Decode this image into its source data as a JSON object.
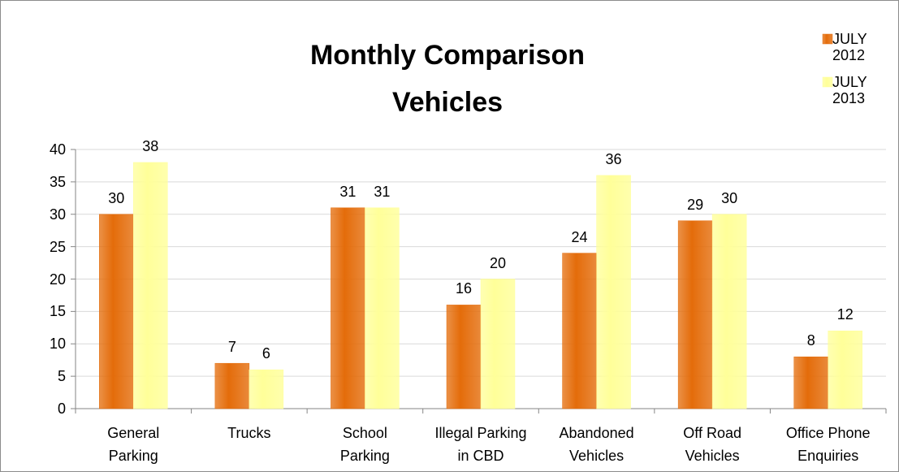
{
  "chart_data": {
    "type": "bar",
    "title": "Monthly Comparison\nVehicles",
    "categories": [
      "General\nParking",
      "Trucks",
      "School\nParking",
      "Illegal Parking\nin CBD",
      "Abandoned\nVehicles",
      "Off Road\nVehicles",
      "Office Phone\nEnquiries"
    ],
    "series": [
      {
        "name": "JULY 2012",
        "color": "#e46c0a",
        "values": [
          30,
          7,
          31,
          16,
          24,
          29,
          8
        ]
      },
      {
        "name": "JULY 2013",
        "color": "#ffff99",
        "values": [
          38,
          6,
          31,
          20,
          36,
          30,
          12
        ]
      }
    ],
    "ylim": [
      0,
      40
    ],
    "yticks": [
      0,
      5,
      10,
      15,
      20,
      25,
      30,
      35,
      40
    ],
    "grid": true,
    "legend": "top-right"
  }
}
